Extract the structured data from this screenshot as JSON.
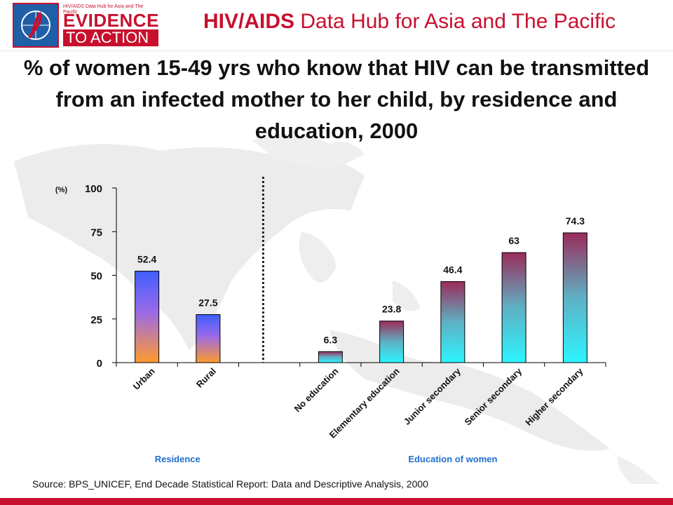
{
  "header": {
    "logo_small_text": "HIV/AIDS Data Hub for Asia and The Pacific",
    "logo_evidence": "EVIDENCE",
    "logo_action": "TO ACTION",
    "hub_title_bold": "HIV/AIDS",
    "hub_title_rest": "Data Hub for Asia and The Pacific"
  },
  "colors": {
    "brand_red": "#c8102e",
    "residence_bar_top": "#3f5fff",
    "residence_bar_bottom": "#ff9a2e",
    "education_bar_top": "#9b2c5a",
    "education_bar_bottom": "#2cf5ff",
    "group_label_blue": "#1f6fd1"
  },
  "chart_data": {
    "type": "bar",
    "title": "% of women 15-49 yrs who know that HIV can be transmitted from an infected mother to her child, by residence and education, 2000",
    "ylabel": "(%)",
    "ylim": [
      0,
      100
    ],
    "yticks": [
      0,
      25,
      50,
      75,
      100
    ],
    "categories": [
      "Urban",
      "Rural",
      "",
      "No education",
      "Elementary education",
      "Junior secondary",
      "Senior secondary",
      "Higher secondary"
    ],
    "values": [
      52.4,
      27.5,
      null,
      6.3,
      23.8,
      46.4,
      63,
      74.3
    ],
    "value_labels": [
      "52.4",
      "27.5",
      "",
      "6.3",
      "23.8",
      "46.4",
      "63",
      "74.3"
    ],
    "groups": [
      {
        "label": "Residence",
        "indices": [
          0,
          1
        ]
      },
      {
        "label": "Education of women",
        "indices": [
          3,
          4,
          5,
          6,
          7
        ]
      }
    ],
    "grid": false,
    "legend": "none"
  },
  "source": "Source: BPS_UNICEF, End Decade Statistical Report: Data and Descriptive Analysis, 2000"
}
